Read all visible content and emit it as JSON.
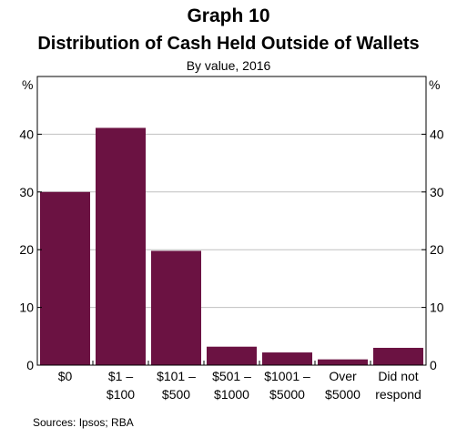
{
  "header": {
    "title": "Graph 10",
    "subtitle": "Distribution of Cash Held Outside of Wallets",
    "note": "By value, 2016"
  },
  "footer": {
    "source": "Sources: Ipsos; RBA"
  },
  "colors": {
    "bar": "#6b1242",
    "grid": "#c0c0c0",
    "axis": "#000000"
  },
  "chart_data": {
    "type": "bar",
    "title": "Distribution of Cash Held Outside of Wallets",
    "unit_left": "%",
    "unit_right": "%",
    "categories": [
      [
        "$0"
      ],
      [
        "$1 –",
        "$100"
      ],
      [
        "$101 –",
        "$500"
      ],
      [
        "$501 –",
        "$1000"
      ],
      [
        "$1001 –",
        "$5000"
      ],
      [
        "Over",
        "$5000"
      ],
      [
        "Did not",
        "respond"
      ]
    ],
    "values": [
      30.0,
      41.1,
      19.8,
      3.2,
      2.2,
      1.0,
      3.0
    ],
    "ylim": [
      0,
      50
    ],
    "yticks": [
      0,
      10,
      20,
      30,
      40
    ],
    "grid": true
  }
}
